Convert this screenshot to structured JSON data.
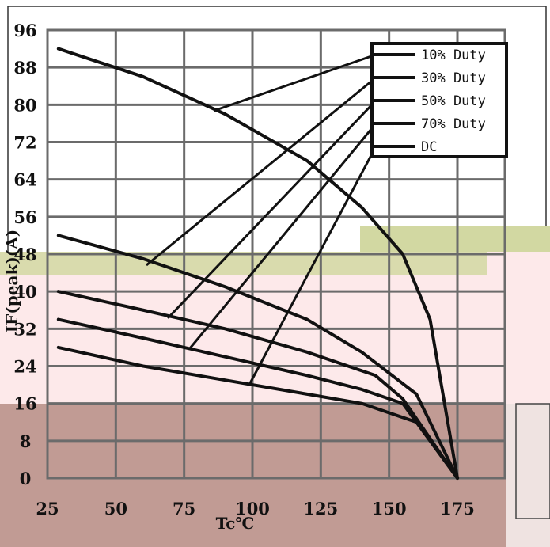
{
  "chart_data": {
    "type": "line",
    "title": "",
    "xlabel": "Tc℃",
    "ylabel": "IF(peak)(A)",
    "xlim": [
      25,
      175
    ],
    "ylim": [
      0,
      96
    ],
    "x_ticks": [
      "25",
      "50",
      "75",
      "100",
      "125",
      "150",
      "175"
    ],
    "y_ticks": [
      "0",
      "8",
      "16",
      "24",
      "32",
      "40",
      "48",
      "56",
      "64",
      "72",
      "80",
      "88",
      "96"
    ],
    "grid": true,
    "legend_position": "top-right",
    "series": [
      {
        "name": "10% Duty",
        "x": [
          29,
          60,
          90,
          120,
          140,
          155,
          165,
          175
        ],
        "y": [
          92,
          86,
          78,
          68,
          58,
          48,
          34,
          0
        ]
      },
      {
        "name": "30% Duty",
        "x": [
          29,
          60,
          90,
          120,
          140,
          160,
          175
        ],
        "y": [
          52,
          47,
          41,
          34,
          27,
          18,
          0
        ]
      },
      {
        "name": "50% Duty",
        "x": [
          29,
          60,
          90,
          120,
          145,
          155,
          175
        ],
        "y": [
          40,
          36,
          32,
          27,
          22,
          17,
          0
        ]
      },
      {
        "name": "70% Duty",
        "x": [
          29,
          60,
          90,
          120,
          140,
          155,
          175
        ],
        "y": [
          34,
          30,
          26,
          22,
          19,
          16,
          0
        ]
      },
      {
        "name": "DC",
        "x": [
          29,
          60,
          90,
          120,
          140,
          160,
          175
        ],
        "y": [
          28,
          24,
          21,
          18,
          16,
          12,
          0
        ]
      }
    ]
  },
  "colors": {
    "grid": "#6b6b6b",
    "curve": "#111111",
    "band_pink": "#fde9ea",
    "band_olive": "#d2d8a2",
    "band_rose": "#c19b94"
  }
}
